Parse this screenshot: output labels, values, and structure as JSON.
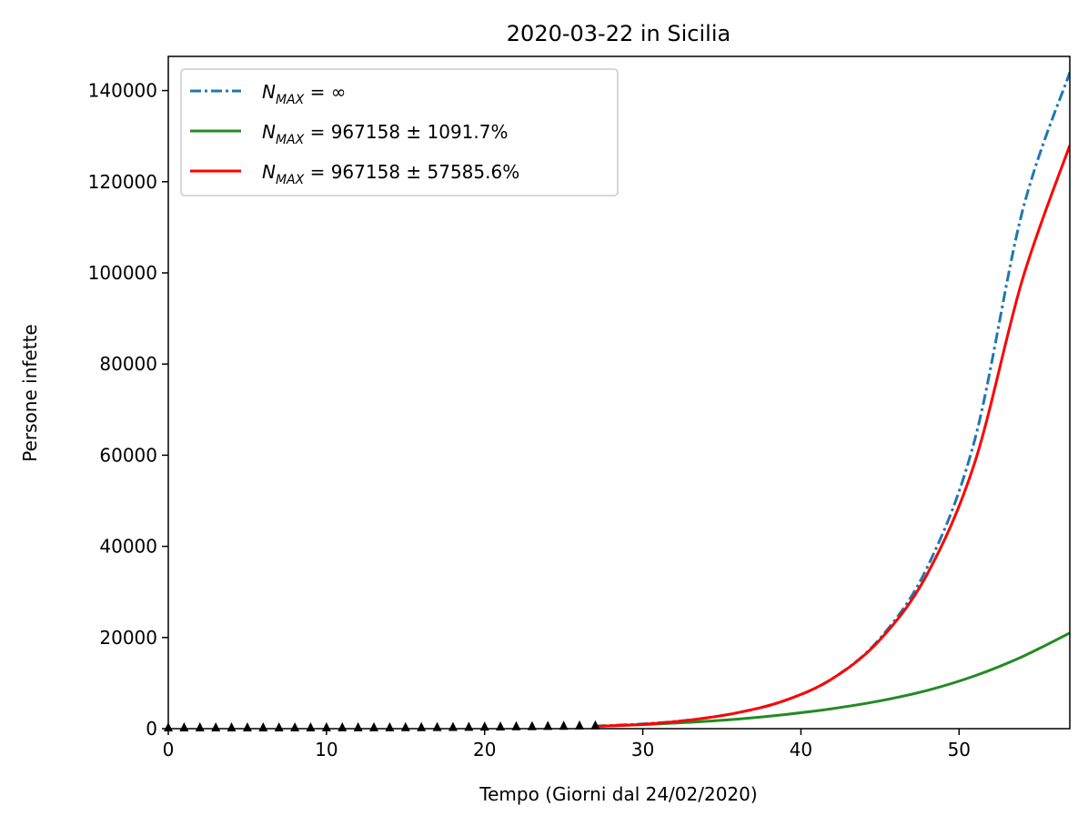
{
  "chart_data": {
    "type": "line",
    "title": "2020-03-22 in Sicilia",
    "xlabel": "Tempo (Giorni dal 24/02/2020)",
    "ylabel": "Persone infette",
    "xlim": [
      0,
      57
    ],
    "ylim": [
      0,
      147500
    ],
    "xticks": [
      0,
      10,
      20,
      30,
      40,
      50
    ],
    "yticks": [
      0,
      20000,
      40000,
      60000,
      80000,
      100000,
      120000,
      140000
    ],
    "grid": false,
    "legend_position": "top-left",
    "colors": {
      "infinite": "#1f77b4",
      "green": "#228b22",
      "red": "#ff0000",
      "observed": "#000000"
    },
    "series": [
      {
        "legend_main": "N",
        "legend_sub": "MAX",
        "legend_rest": " = ∞",
        "style": "dashdot",
        "x": [
          27,
          30,
          33,
          36,
          39,
          42,
          45,
          48,
          51,
          54,
          57
        ],
        "values": [
          580,
          1050,
          1900,
          3500,
          6200,
          11000,
          19800,
          35500,
          63500,
          113500,
          144000
        ]
      },
      {
        "legend_main": "N",
        "legend_sub": "MAX",
        "legend_rest": " = 967158 ± 1091.7%",
        "style": "solid",
        "x": [
          27,
          30,
          33,
          36,
          39,
          42,
          45,
          48,
          51,
          54,
          57
        ],
        "values": [
          500,
          870,
          1400,
          2100,
          3100,
          4400,
          6100,
          8400,
          11600,
          15800,
          21000
        ]
      },
      {
        "legend_main": "N",
        "legend_sub": "MAX",
        "legend_rest": " = 967158 ± 57585.6%",
        "style": "solid",
        "x": [
          27,
          30,
          33,
          36,
          39,
          42,
          45,
          48,
          51,
          54,
          57
        ],
        "values": [
          500,
          950,
          1900,
          3500,
          6200,
          11000,
          19500,
          34000,
          58500,
          98500,
          128000
        ]
      }
    ],
    "observed": {
      "marker": "triangle",
      "x": [
        0,
        1,
        2,
        3,
        4,
        5,
        6,
        7,
        8,
        9,
        10,
        11,
        12,
        13,
        14,
        15,
        16,
        17,
        18,
        19,
        20,
        21,
        22,
        23,
        24,
        25,
        26,
        27
      ],
      "values": [
        3,
        3,
        4,
        4,
        4,
        4,
        5,
        5,
        6,
        9,
        16,
        18,
        20,
        28,
        36,
        40,
        55,
        70,
        98,
        128,
        170,
        205,
        245,
        285,
        330,
        360,
        420,
        450
      ]
    }
  }
}
